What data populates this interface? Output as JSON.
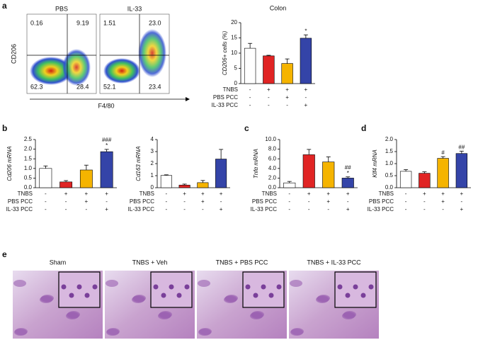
{
  "panel_letters": [
    "a",
    "b",
    "c",
    "d",
    "e"
  ],
  "flow": {
    "y_label": "CD206",
    "x_label": "F4/80",
    "plots": [
      {
        "title": "PBS",
        "quadrants": [
          "0.16",
          "9.19",
          "62.3",
          "28.4"
        ]
      },
      {
        "title": "IL-33",
        "quadrants": [
          "1.51",
          "23.0",
          "52.1",
          "23.4"
        ]
      }
    ]
  },
  "histology": {
    "labels": [
      "Sham",
      "TNBS + Veh",
      "TNBS + PBS PCC",
      "TNBS + IL-33 PCC"
    ]
  },
  "chart_data": [
    {
      "type": "bar",
      "title": "Colon",
      "y_label": "CD206+ cells (%)",
      "values": [
        11.6,
        9.1,
        6.6,
        14.9
      ],
      "errors": [
        1.6,
        0.2,
        1.5,
        1.1
      ],
      "colors": [
        "#ffffff",
        "#e02424",
        "#f5b400",
        "#3444a8"
      ],
      "bar_labels": [
        null,
        null,
        null,
        [
          "*"
        ]
      ],
      "ylim": [
        0,
        20
      ],
      "yticks": [
        0,
        5,
        10,
        15,
        20
      ],
      "conditions": [
        {
          "name": "TNBS",
          "signs": [
            "-",
            "+",
            "+",
            "+"
          ]
        },
        {
          "name": "PBS PCC",
          "signs": [
            "-",
            "-",
            "+",
            "-"
          ]
        },
        {
          "name": "IL-33 PCC",
          "signs": [
            "-",
            "-",
            "-",
            "+"
          ]
        }
      ]
    },
    {
      "type": "bar",
      "y_label": "Cd206 mRNA",
      "values": [
        1.0,
        0.3,
        0.92,
        1.87
      ],
      "errors": [
        0.13,
        0.07,
        0.25,
        0.12
      ],
      "colors": [
        "#ffffff",
        "#e02424",
        "#f5b400",
        "#3444a8"
      ],
      "bar_labels": [
        null,
        null,
        null,
        [
          "###",
          "*"
        ]
      ],
      "ylim": [
        0,
        2.5
      ],
      "yticks": [
        {
          "value": 0,
          "label": "0.0"
        },
        {
          "value": 0.5,
          "label": "0.5"
        },
        {
          "value": 1,
          "label": "1.0"
        },
        {
          "value": 1.5,
          "label": "1.5"
        },
        {
          "value": 2,
          "label": "2.0"
        },
        {
          "value": 2.5,
          "label": "2.5"
        }
      ],
      "conditions": [
        {
          "name": "TNBS",
          "signs": [
            "-",
            "+",
            "+",
            "+"
          ]
        },
        {
          "name": "PBS PCC",
          "signs": [
            "-",
            "-",
            "+",
            "-"
          ]
        },
        {
          "name": "IL-33 PCC",
          "signs": [
            "-",
            "-",
            "-",
            "+"
          ]
        }
      ]
    },
    {
      "type": "bar",
      "y_label": "Cd163 mRNA",
      "values": [
        1.02,
        0.22,
        0.42,
        2.38
      ],
      "errors": [
        0.05,
        0.08,
        0.18,
        0.8
      ],
      "colors": [
        "#ffffff",
        "#e02424",
        "#f5b400",
        "#3444a8"
      ],
      "bar_labels": [
        null,
        null,
        null,
        null
      ],
      "ylim": [
        0,
        4
      ],
      "yticks": [
        0,
        1,
        2,
        3,
        4
      ],
      "conditions": [
        {
          "name": "TNBS",
          "signs": [
            "-",
            "+",
            "+",
            "+"
          ]
        },
        {
          "name": "PBS PCC",
          "signs": [
            "-",
            "-",
            "+",
            "-"
          ]
        },
        {
          "name": "IL-33 PCC",
          "signs": [
            "-",
            "-",
            "-",
            "+"
          ]
        }
      ]
    },
    {
      "type": "bar",
      "y_label": "Tnfα mRNA",
      "values": [
        1.0,
        6.85,
        5.35,
        2.0
      ],
      "errors": [
        0.3,
        1.1,
        1.05,
        0.25
      ],
      "colors": [
        "#ffffff",
        "#e02424",
        "#f5b400",
        "#3444a8"
      ],
      "bar_labels": [
        null,
        null,
        null,
        [
          "##",
          "*"
        ]
      ],
      "ylim": [
        0,
        10
      ],
      "yticks": [
        {
          "value": 0,
          "label": "0.0"
        },
        {
          "value": 2,
          "label": "2.0"
        },
        {
          "value": 4,
          "label": "4.0"
        },
        {
          "value": 6,
          "label": "6.0"
        },
        {
          "value": 8,
          "label": "8.0"
        },
        {
          "value": 10,
          "label": "10.0"
        }
      ],
      "conditions": [
        {
          "name": "TNBS",
          "signs": [
            "-",
            "+",
            "+",
            "+"
          ]
        },
        {
          "name": "PBS PCC",
          "signs": [
            "-",
            "-",
            "+",
            "-"
          ]
        },
        {
          "name": "IL-33 PCC",
          "signs": [
            "-",
            "-",
            "-",
            "+"
          ]
        }
      ]
    },
    {
      "type": "bar",
      "y_label": "Klf4 mRNA",
      "values": [
        0.68,
        0.6,
        1.22,
        1.42
      ],
      "errors": [
        0.07,
        0.06,
        0.07,
        0.1
      ],
      "colors": [
        "#ffffff",
        "#e02424",
        "#f5b400",
        "#3444a8"
      ],
      "bar_labels": [
        null,
        null,
        [
          "#"
        ],
        [
          "##"
        ]
      ],
      "ylim": [
        0,
        2
      ],
      "yticks": [
        {
          "value": 0,
          "label": "0.0"
        },
        {
          "value": 0.5,
          "label": "0.5"
        },
        {
          "value": 1,
          "label": "1.0"
        },
        {
          "value": 1.5,
          "label": "1.5"
        },
        {
          "value": 2,
          "label": "2.0"
        }
      ],
      "conditions": [
        {
          "name": "TNBS",
          "signs": [
            "-",
            "+",
            "+",
            "+"
          ]
        },
        {
          "name": "PBS PCC",
          "signs": [
            "-",
            "-",
            "+",
            "-"
          ]
        },
        {
          "name": "IL-33 PCC",
          "signs": [
            "-",
            "-",
            "-",
            "+"
          ]
        }
      ]
    }
  ]
}
